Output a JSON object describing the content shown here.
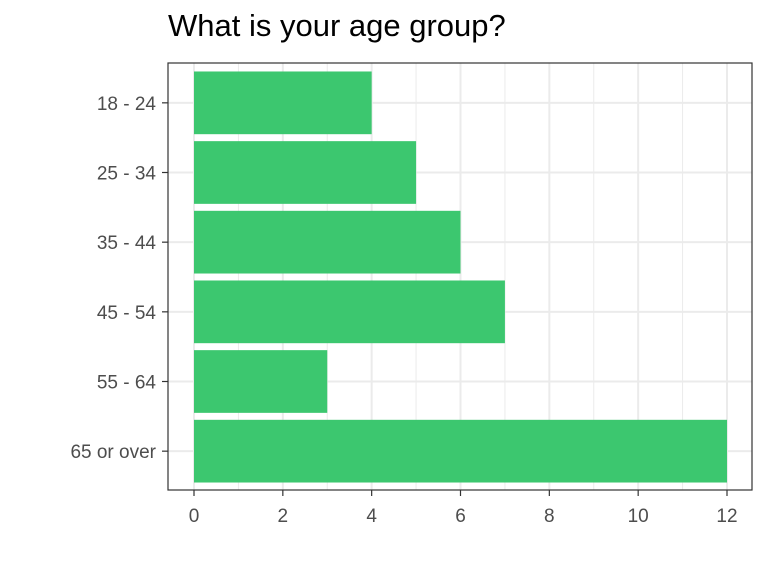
{
  "chart_data": {
    "type": "bar",
    "orientation": "horizontal",
    "title": "What is your age group?",
    "xlabel": "",
    "ylabel": "",
    "categories": [
      "18 - 24",
      "25 - 34",
      "35 - 44",
      "45 - 54",
      "55 - 64",
      "65 or over"
    ],
    "values": [
      4,
      5,
      6,
      7,
      3,
      12
    ],
    "xlim": [
      0,
      12
    ],
    "xticks": [
      "0",
      "2",
      "4",
      "6",
      "8",
      "10",
      "12"
    ],
    "grid": true,
    "legend": "none",
    "bar_color": "#3cc76f",
    "grid_color": "#ebebeb",
    "panel_border_color": "#333333"
  }
}
